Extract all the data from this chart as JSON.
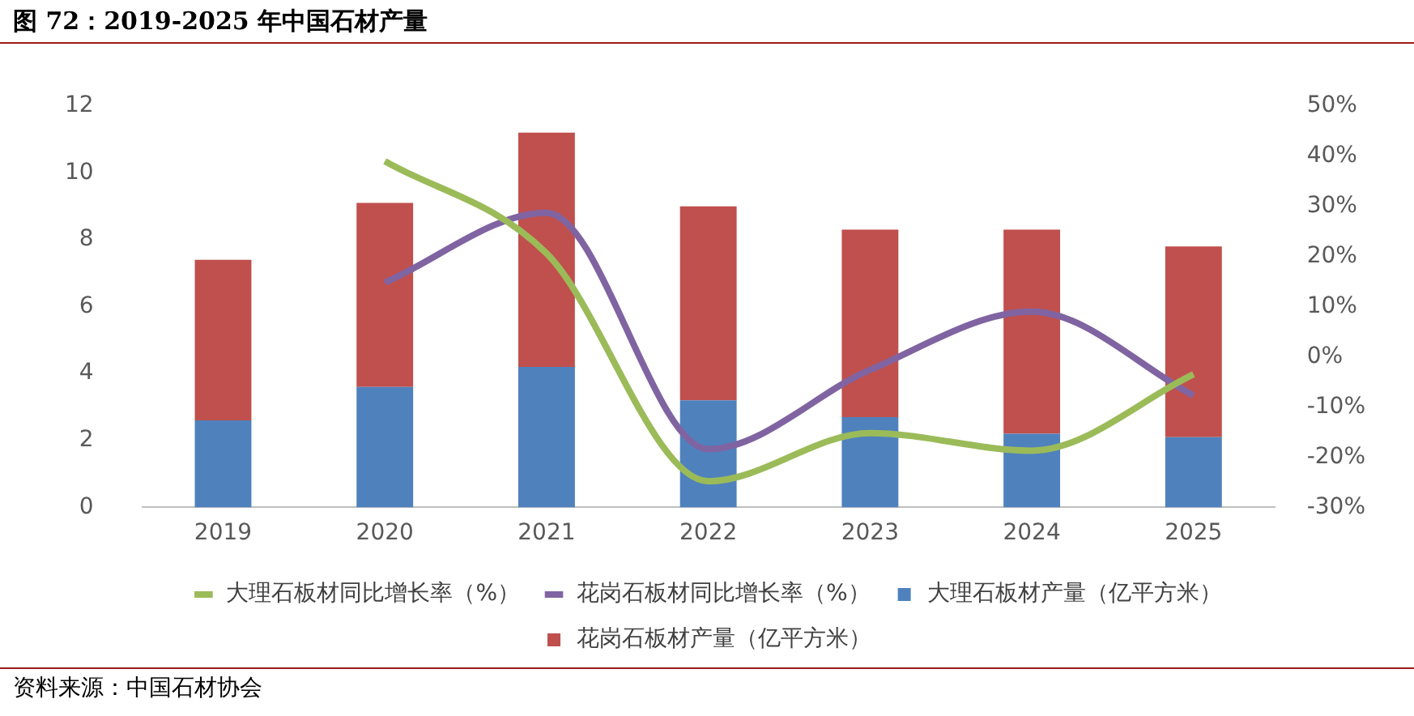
{
  "chart_data": {
    "type": "bar",
    "title": "图 72：2019-2025 年中国石材产量",
    "categories": [
      "2019",
      "2020",
      "2021",
      "2022",
      "2023",
      "2024",
      "2025"
    ],
    "stacked": true,
    "series": [
      {
        "name": "大理石板材产量（亿平方米）",
        "color": "#4f81bd",
        "values": [
          2.6,
          3.6,
          4.2,
          3.2,
          2.7,
          2.2,
          2.1
        ]
      },
      {
        "name": "花岗石板材产量（亿平方米）",
        "color": "#c0504d",
        "values": [
          4.8,
          5.5,
          7.0,
          5.8,
          5.6,
          6.1,
          5.7
        ]
      },
      {
        "name": "大理石板材同比增长率（%）",
        "type": "line",
        "axis": "y2",
        "color": "#9bbb59",
        "values": [
          null,
          39,
          20.6,
          -24.8,
          -15.2,
          -18.7,
          -3.5
        ]
      },
      {
        "name": "花岗石板材同比增长率（%）",
        "type": "line",
        "axis": "y2",
        "color": "#8064a2",
        "values": [
          null,
          14.8,
          28.7,
          -18.4,
          -2.6,
          9,
          -7.7
        ]
      }
    ],
    "ylim": [
      0,
      12
    ],
    "yticks": [
      0,
      2,
      4,
      6,
      8,
      10,
      12
    ],
    "y2lim": [
      -30,
      50
    ],
    "y2ticks": [
      {
        "value": -30,
        "label": "-30%"
      },
      {
        "value": -20,
        "label": "-20%"
      },
      {
        "value": -10,
        "label": "-10%"
      },
      {
        "value": 0,
        "label": "0%"
      },
      {
        "value": 10,
        "label": "10%"
      },
      {
        "value": 20,
        "label": "20%"
      },
      {
        "value": 30,
        "label": "30%"
      },
      {
        "value": 40,
        "label": "40%"
      },
      {
        "value": 50,
        "label": "50%"
      }
    ],
    "grid": false,
    "legend": "bottom",
    "marker": "none",
    "line_style": "solid",
    "annotations": [
      "资料来源：中国石材协会"
    ]
  }
}
